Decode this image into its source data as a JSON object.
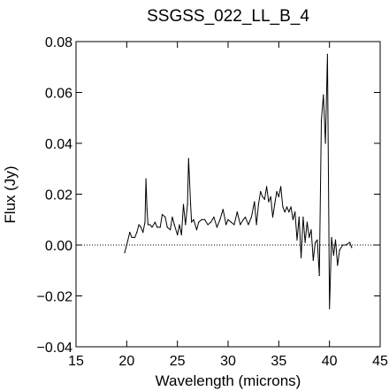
{
  "chart_data": {
    "type": "line",
    "title": "SSGSS_022_LL_B_4",
    "xlabel": "Wavelength (microns)",
    "ylabel": "Flux (Jy)",
    "xlim": [
      15,
      45
    ],
    "ylim": [
      -0.04,
      0.08
    ],
    "x_ticks": [
      15,
      20,
      25,
      30,
      35,
      40,
      45
    ],
    "x_tick_labels": [
      "15",
      "20",
      "25",
      "30",
      "35",
      "40",
      "45"
    ],
    "y_ticks": [
      -0.04,
      -0.02,
      0.0,
      0.02,
      0.04,
      0.06,
      0.08
    ],
    "y_tick_labels": [
      "−0.04",
      "−0.02",
      "0.00",
      "0.02",
      "0.04",
      "0.06",
      "0.08"
    ],
    "zero_line": {
      "y": 0,
      "style": "dotted"
    },
    "grid": false,
    "series": [
      {
        "color": "#000000",
        "x": [
          19.8,
          20.0,
          20.3,
          20.5,
          20.8,
          21.0,
          21.2,
          21.4,
          21.6,
          21.8,
          21.9,
          22.0,
          22.1,
          22.3,
          22.5,
          22.8,
          23.0,
          23.3,
          23.5,
          23.8,
          24.0,
          24.3,
          24.5,
          24.7,
          25.0,
          25.2,
          25.4,
          25.6,
          25.8,
          26.0,
          26.1,
          26.3,
          26.4,
          26.6,
          26.9,
          27.1,
          27.4,
          27.7,
          28.0,
          28.3,
          28.6,
          28.9,
          29.2,
          29.5,
          29.8,
          30.0,
          30.3,
          30.6,
          30.9,
          31.2,
          31.5,
          31.7,
          32.0,
          32.3,
          32.6,
          32.8,
          33.0,
          33.2,
          33.4,
          33.6,
          33.8,
          34.0,
          34.2,
          34.4,
          34.6,
          34.8,
          35.0,
          35.2,
          35.4,
          35.6,
          35.8,
          36.0,
          36.2,
          36.4,
          36.6,
          36.8,
          37.0,
          37.2,
          37.4,
          37.6,
          37.8,
          38.0,
          38.2,
          38.4,
          38.6,
          38.8,
          39.0,
          39.2,
          39.4,
          39.6,
          39.8,
          40.0,
          40.2,
          40.4,
          40.6,
          40.8,
          41.0,
          41.3,
          41.6,
          42.0,
          42.2
        ],
        "y": [
          -0.003,
          0.0,
          0.005,
          0.003,
          0.003,
          0.005,
          0.008,
          0.007,
          0.005,
          0.009,
          0.026,
          0.014,
          0.008,
          0.008,
          0.007,
          0.009,
          0.007,
          0.007,
          0.012,
          0.011,
          0.007,
          0.006,
          0.011,
          0.008,
          0.004,
          0.008,
          0.004,
          0.016,
          0.008,
          0.016,
          0.034,
          0.016,
          0.009,
          0.01,
          0.006,
          0.009,
          0.01,
          0.01,
          0.008,
          0.009,
          0.011,
          0.007,
          0.01,
          0.014,
          0.008,
          0.01,
          0.009,
          0.008,
          0.013,
          0.008,
          0.01,
          0.011,
          0.008,
          0.011,
          0.017,
          0.008,
          0.016,
          0.021,
          0.019,
          0.018,
          0.023,
          0.017,
          0.019,
          0.011,
          0.016,
          0.021,
          0.019,
          0.023,
          0.015,
          0.013,
          0.015,
          0.013,
          0.015,
          0.01,
          0.013,
          0.002,
          0.011,
          -0.005,
          0.011,
          0.001,
          0.009,
          0.003,
          0.006,
          -0.006,
          0.001,
          0.002,
          -0.012,
          0.049,
          0.059,
          0.04,
          0.075,
          -0.025,
          0.003,
          -0.004,
          0.002,
          -0.008,
          -0.002,
          0.0,
          0.0,
          0.001,
          -0.001
        ]
      }
    ]
  }
}
